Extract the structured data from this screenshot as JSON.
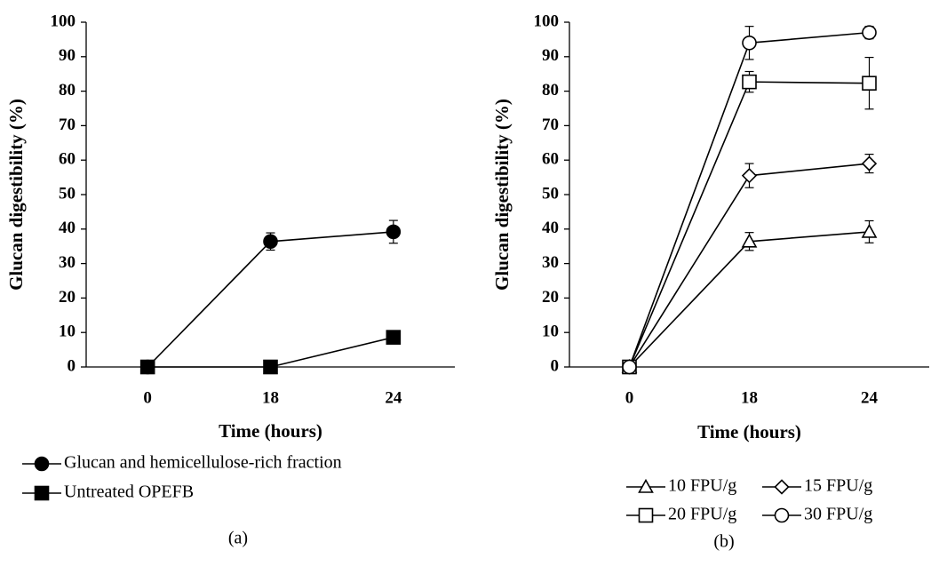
{
  "chart_data": [
    {
      "type": "line",
      "panel_label": "(a)",
      "x_label": "Time (hours)",
      "y_label": "Glucan digestibility (%)",
      "categories": [
        "0",
        "18",
        "24"
      ],
      "ylim": [
        0,
        100
      ],
      "yticks": [
        0,
        10,
        20,
        30,
        40,
        50,
        60,
        70,
        80,
        90,
        100
      ],
      "legend": "below",
      "series": [
        {
          "name": "Glucan and hemicellulose-rich fraction",
          "color": "#000000",
          "marker": "circle",
          "filled": true,
          "values": [
            0,
            36.4,
            39.2
          ],
          "errors": [
            null,
            2.5,
            3.3
          ]
        },
        {
          "name": "Untreated OPEFB",
          "color": "#000000",
          "marker": "square",
          "filled": true,
          "values": [
            0,
            0,
            8.6
          ],
          "errors": [
            null,
            null,
            null
          ]
        }
      ]
    },
    {
      "type": "line",
      "panel_label": "(b)",
      "x_label": "Time (hours)",
      "y_label": "Glucan digestibility (%)",
      "categories": [
        "0",
        "18",
        "24"
      ],
      "ylim": [
        0,
        100
      ],
      "yticks": [
        0,
        10,
        20,
        30,
        40,
        50,
        60,
        70,
        80,
        90,
        100
      ],
      "legend": "below",
      "series": [
        {
          "name": "10 FPU/g",
          "color": "#000000",
          "marker": "triangle",
          "filled": false,
          "values": [
            0,
            36.4,
            39.2
          ],
          "errors": [
            null,
            2.6,
            3.2
          ]
        },
        {
          "name": "15 FPU/g",
          "color": "#000000",
          "marker": "diamond",
          "filled": false,
          "values": [
            0,
            55.5,
            59.0
          ],
          "errors": [
            null,
            3.5,
            2.7
          ]
        },
        {
          "name": "20 FPU/g",
          "color": "#000000",
          "marker": "square",
          "filled": false,
          "values": [
            0,
            82.7,
            82.3
          ],
          "errors": [
            null,
            3.0,
            7.5
          ]
        },
        {
          "name": "30 FPU/g",
          "color": "#000000",
          "marker": "circle",
          "filled": false,
          "values": [
            0,
            94.0,
            97.0
          ],
          "errors": [
            null,
            4.8,
            1.8
          ]
        }
      ]
    }
  ]
}
